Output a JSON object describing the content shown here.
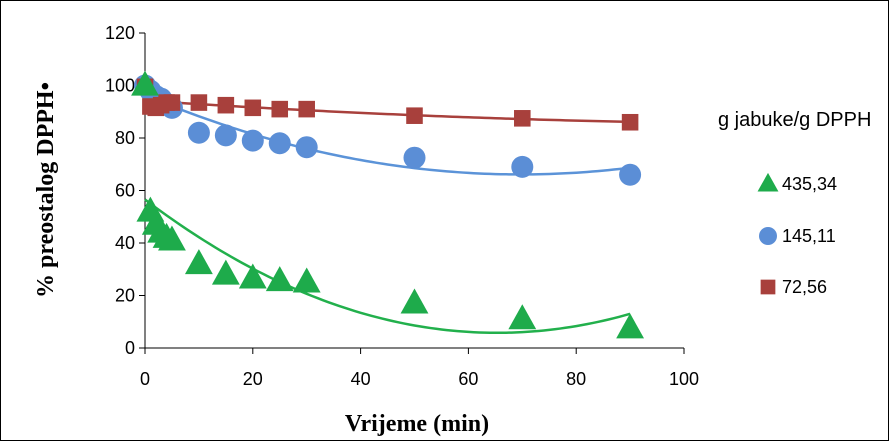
{
  "chart_data": {
    "type": "scatter",
    "title": "",
    "xlabel": "Vrijeme (min)",
    "ylabel": "% preostalog DPPH•",
    "xlim": [
      0,
      100
    ],
    "ylim": [
      0,
      120
    ],
    "x_ticks": [
      "0",
      "20",
      "40",
      "60",
      "80",
      "100"
    ],
    "y_ticks": [
      "0",
      "20",
      "40",
      "60",
      "80",
      "100",
      "120"
    ],
    "grid": false,
    "legend_title": "g jabuke/g DPPH",
    "legend_position": "right",
    "trendline": "polynomial order 2",
    "series": [
      {
        "name": "435,34",
        "marker": "triangle",
        "color": "#1eab4b",
        "line_color": "#22b04c",
        "x": [
          0,
          1,
          2,
          3,
          4,
          5,
          10,
          15,
          20,
          25,
          30,
          50,
          70,
          90
        ],
        "y": [
          100,
          52,
          47,
          44,
          42,
          41,
          32,
          28,
          26.5,
          25.5,
          25,
          17,
          11,
          7.5
        ]
      },
      {
        "name": "145,11",
        "marker": "circle",
        "color": "#5b8ed6",
        "line_color": "#5b93d8",
        "x": [
          0,
          1,
          2,
          3,
          4,
          5,
          10,
          15,
          20,
          25,
          30,
          50,
          70,
          90
        ],
        "y": [
          100,
          98,
          96,
          95,
          93,
          91.5,
          82,
          81,
          79,
          78,
          76.5,
          72.5,
          69,
          66
        ]
      },
      {
        "name": "72,56",
        "marker": "square",
        "color": "#a8403c",
        "line_color": "#a8403c",
        "x": [
          0,
          1,
          2,
          3,
          4,
          5,
          10,
          15,
          20,
          25,
          30,
          50,
          70,
          90
        ],
        "y": [
          99.5,
          92,
          91.5,
          92.5,
          93.5,
          93.5,
          93.5,
          92.5,
          91.5,
          91,
          91,
          88.5,
          87.5,
          86
        ]
      }
    ]
  }
}
